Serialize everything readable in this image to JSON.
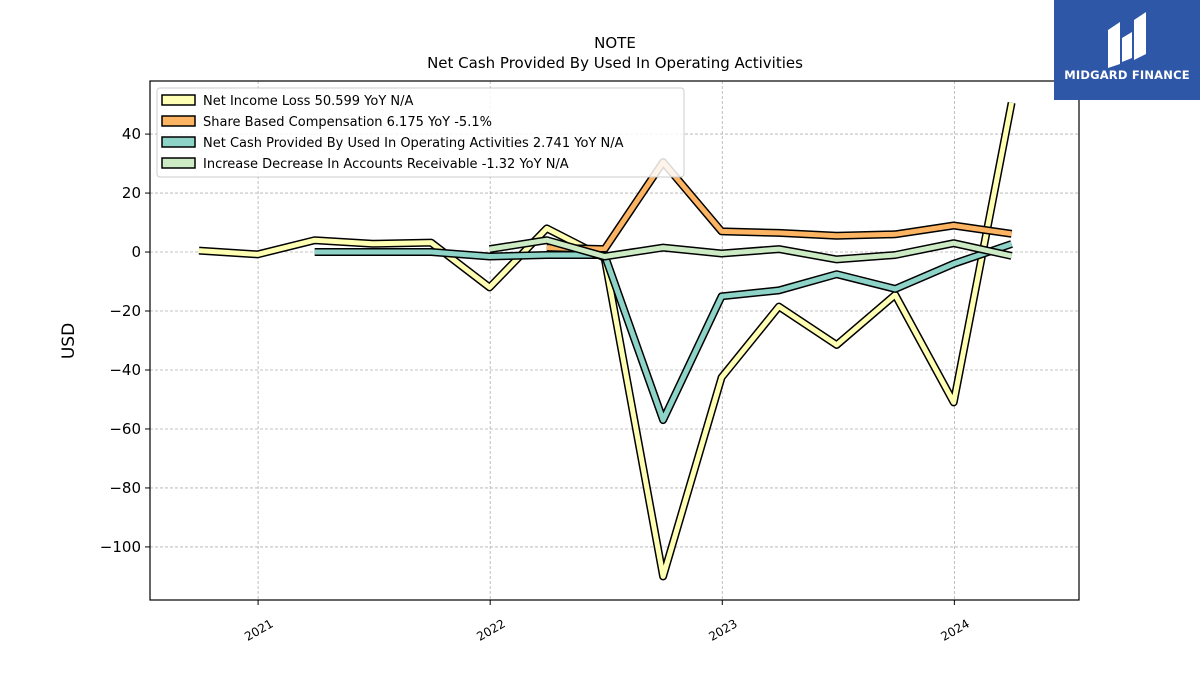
{
  "chart_data": {
    "type": "line",
    "title": "NOTE",
    "subtitle": "Net Cash Provided By Used In Operating Activities",
    "xlabel": "",
    "ylabel": "USD",
    "xlim": [
      "2020-07-15",
      "2024-07-15"
    ],
    "ylim": [
      -118,
      58
    ],
    "x_ticks": [
      "2021-01-01",
      "2022-01-01",
      "2023-01-01",
      "2024-01-01"
    ],
    "x_tick_labels": [
      "2021",
      "2022",
      "2023",
      "2024"
    ],
    "y_ticks": [
      40,
      20,
      0,
      -20,
      -40,
      -60,
      -80,
      -100
    ],
    "y_tick_labels": [
      "40",
      "20",
      "0",
      "−20",
      "−40",
      "−60",
      "−80",
      "−100"
    ],
    "grid": true,
    "legend_position": "top-left",
    "series": [
      {
        "name": "Net Income Loss  50.599 YoY N/A",
        "color": "#ffffb3",
        "points": [
          [
            "2020-09-30",
            0.5
          ],
          [
            "2020-12-31",
            -0.8
          ],
          [
            "2021-03-31",
            4.0
          ],
          [
            "2021-06-30",
            2.8
          ],
          [
            "2021-09-30",
            3.2
          ],
          [
            "2021-12-31",
            -12.0
          ],
          [
            "2022-03-31",
            8.0
          ],
          [
            "2022-06-30",
            -2.0
          ],
          [
            "2022-09-30",
            -110.0
          ],
          [
            "2022-12-31",
            -42.5
          ],
          [
            "2023-03-31",
            -18.5
          ],
          [
            "2023-06-30",
            -31.5
          ],
          [
            "2023-09-30",
            -14.5
          ],
          [
            "2023-12-31",
            -51.0
          ],
          [
            "2024-03-31",
            50.599
          ]
        ]
      },
      {
        "name": "Share Based Compensation  6.175 YoY -5.1%",
        "color": "#fdb462",
        "points": [
          [
            "2022-03-31",
            1.5
          ],
          [
            "2022-06-30",
            1.0
          ],
          [
            "2022-09-30",
            30.5
          ],
          [
            "2022-12-31",
            7.0
          ],
          [
            "2023-03-31",
            6.5
          ],
          [
            "2023-06-30",
            5.5
          ],
          [
            "2023-09-30",
            6.0
          ],
          [
            "2023-12-31",
            9.0
          ],
          [
            "2024-03-31",
            6.175
          ]
        ]
      },
      {
        "name": "Net Cash Provided By Used In Operating Activities  2.741 YoY N/A",
        "color": "#8dd3c7",
        "points": [
          [
            "2021-03-31",
            0.0
          ],
          [
            "2021-06-30",
            0.0
          ],
          [
            "2021-09-30",
            0.0
          ],
          [
            "2021-12-31",
            -1.5
          ],
          [
            "2022-03-31",
            -1.0
          ],
          [
            "2022-06-30",
            -1.0
          ],
          [
            "2022-09-30",
            -57.0
          ],
          [
            "2022-12-31",
            -15.0
          ],
          [
            "2023-03-31",
            -13.0
          ],
          [
            "2023-06-30",
            -7.5
          ],
          [
            "2023-09-30",
            -12.5
          ],
          [
            "2023-12-31",
            -4.0
          ],
          [
            "2024-03-31",
            2.741
          ]
        ]
      },
      {
        "name": "Increase Decrease In Accounts Receivable  -1.32 YoY N/A",
        "color": "#ccebc5",
        "points": [
          [
            "2021-12-31",
            1.0
          ],
          [
            "2022-03-31",
            4.0
          ],
          [
            "2022-06-30",
            -1.5
          ],
          [
            "2022-09-30",
            1.5
          ],
          [
            "2022-12-31",
            -0.5
          ],
          [
            "2023-03-31",
            1.0
          ],
          [
            "2023-06-30",
            -2.5
          ],
          [
            "2023-09-30",
            -1.0
          ],
          [
            "2023-12-31",
            3.0
          ],
          [
            "2024-03-31",
            -1.32
          ]
        ]
      }
    ]
  },
  "logo": {
    "text": "MIDGARD FINANCE"
  }
}
